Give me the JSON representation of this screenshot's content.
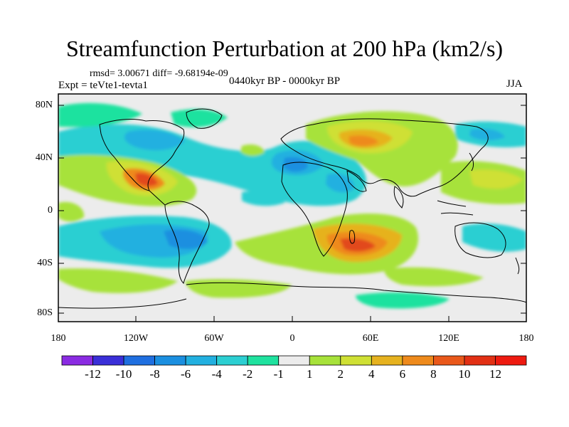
{
  "title": "Streamfunction Perturbation at 200 hPa (km2/s)",
  "stats": "rmsd= 3.00671 diff= -9.68194e-09",
  "period": "0440kyr BP - 0000kyr BP",
  "experiment": "Expt = teVte1-tevta1",
  "season": "JJA",
  "axes": {
    "lat_ticks": [
      "80N",
      "40N",
      "0",
      "40S",
      "80S"
    ],
    "lon_ticks": [
      "180",
      "120W",
      "60W",
      "0",
      "60E",
      "120E",
      "180"
    ]
  },
  "colorbar": {
    "labels": [
      "-12",
      "-10",
      "-8",
      "-6",
      "-4",
      "-2",
      "-1",
      "1",
      "2",
      "4",
      "6",
      "8",
      "10",
      "12"
    ],
    "colors": [
      "#8a2be2",
      "#3a2fd8",
      "#1f6fe0",
      "#1b8fe0",
      "#22b0e0",
      "#2ccfd2",
      "#1fe29f",
      "#ececec",
      "#a7e23a",
      "#cfe034",
      "#e6b21f",
      "#ee8a1c",
      "#e9581a",
      "#e23014",
      "#ee1a10"
    ]
  },
  "colors": {
    "background": "#ffffff",
    "map_fill": "#ececec",
    "coastline": "#000000"
  }
}
